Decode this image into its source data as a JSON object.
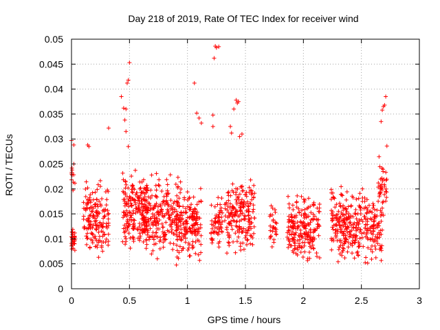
{
  "chart_data": {
    "type": "scatter",
    "title": "Day 218 of 2019, Rate Of TEC Index for receiver wind",
    "xlabel": "GPS time / hours",
    "ylabel": "ROTI / TECUs",
    "xlim": [
      0,
      3
    ],
    "ylim": [
      0,
      0.05
    ],
    "x_ticks": [
      "0",
      "0.5",
      "1",
      "1.5",
      "2",
      "2.5",
      "3"
    ],
    "y_ticks": [
      "0",
      "0.005",
      "0.01",
      "0.015",
      "0.02",
      "0.025",
      "0.03",
      "0.035",
      "0.04",
      "0.045",
      "0.05"
    ],
    "grid": true,
    "marker": "+",
    "series_color": "#ff0000",
    "clusters": [
      {
        "x": [
          0.0,
          0.03
        ],
        "y": [
          0.007,
          0.013
        ],
        "n": 30
      },
      {
        "x": [
          0.0,
          0.03
        ],
        "y": [
          0.015,
          0.03
        ],
        "n": 10
      },
      {
        "x": [
          0.1,
          0.32
        ],
        "y": [
          0.005,
          0.024
        ],
        "n": 170
      },
      {
        "x": [
          0.44,
          0.66
        ],
        "y": [
          0.005,
          0.025
        ],
        "n": 190
      },
      {
        "x": [
          0.62,
          0.92
        ],
        "y": [
          0.004,
          0.025
        ],
        "n": 230
      },
      {
        "x": [
          0.9,
          1.12
        ],
        "y": [
          0.003,
          0.023
        ],
        "n": 180
      },
      {
        "x": [
          1.2,
          1.3
        ],
        "y": [
          0.004,
          0.021
        ],
        "n": 60
      },
      {
        "x": [
          1.32,
          1.58
        ],
        "y": [
          0.005,
          0.025
        ],
        "n": 200
      },
      {
        "x": [
          1.71,
          1.77
        ],
        "y": [
          0.006,
          0.019
        ],
        "n": 30
      },
      {
        "x": [
          1.86,
          2.14
        ],
        "y": [
          0.004,
          0.02
        ],
        "n": 210
      },
      {
        "x": [
          2.24,
          2.42
        ],
        "y": [
          0.004,
          0.022
        ],
        "n": 150
      },
      {
        "x": [
          2.42,
          2.68
        ],
        "y": [
          0.003,
          0.022
        ],
        "n": 180
      },
      {
        "x": [
          2.64,
          2.72
        ],
        "y": [
          0.012,
          0.028
        ],
        "n": 40
      }
    ],
    "points": [
      [
        0.0,
        0.0297
      ],
      [
        0.02,
        0.025
      ],
      [
        0.02,
        0.0288
      ],
      [
        0.14,
        0.0288
      ],
      [
        0.15,
        0.0285
      ],
      [
        0.32,
        0.0322
      ],
      [
        0.43,
        0.0385
      ],
      [
        0.45,
        0.0362
      ],
      [
        0.46,
        0.0338
      ],
      [
        0.47,
        0.0315
      ],
      [
        0.47,
        0.036
      ],
      [
        0.48,
        0.0412
      ],
      [
        0.49,
        0.0418
      ],
      [
        0.5,
        0.0453
      ],
      [
        0.49,
        0.0285
      ],
      [
        1.06,
        0.0412
      ],
      [
        1.08,
        0.0352
      ],
      [
        1.1,
        0.0342
      ],
      [
        1.12,
        0.0332
      ],
      [
        1.22,
        0.0325
      ],
      [
        1.22,
        0.0348
      ],
      [
        1.23,
        0.0462
      ],
      [
        1.24,
        0.0486
      ],
      [
        1.25,
        0.0483
      ],
      [
        1.27,
        0.0485
      ],
      [
        1.37,
        0.0325
      ],
      [
        1.38,
        0.0312
      ],
      [
        1.4,
        0.036
      ],
      [
        1.42,
        0.0378
      ],
      [
        1.43,
        0.0372
      ],
      [
        1.44,
        0.0375
      ],
      [
        1.45,
        0.0305
      ],
      [
        1.47,
        0.031
      ],
      [
        2.67,
        0.0335
      ],
      [
        2.68,
        0.0358
      ],
      [
        2.69,
        0.0365
      ],
      [
        2.7,
        0.0368
      ],
      [
        2.71,
        0.0385
      ],
      [
        2.72,
        0.0286
      ]
    ]
  }
}
